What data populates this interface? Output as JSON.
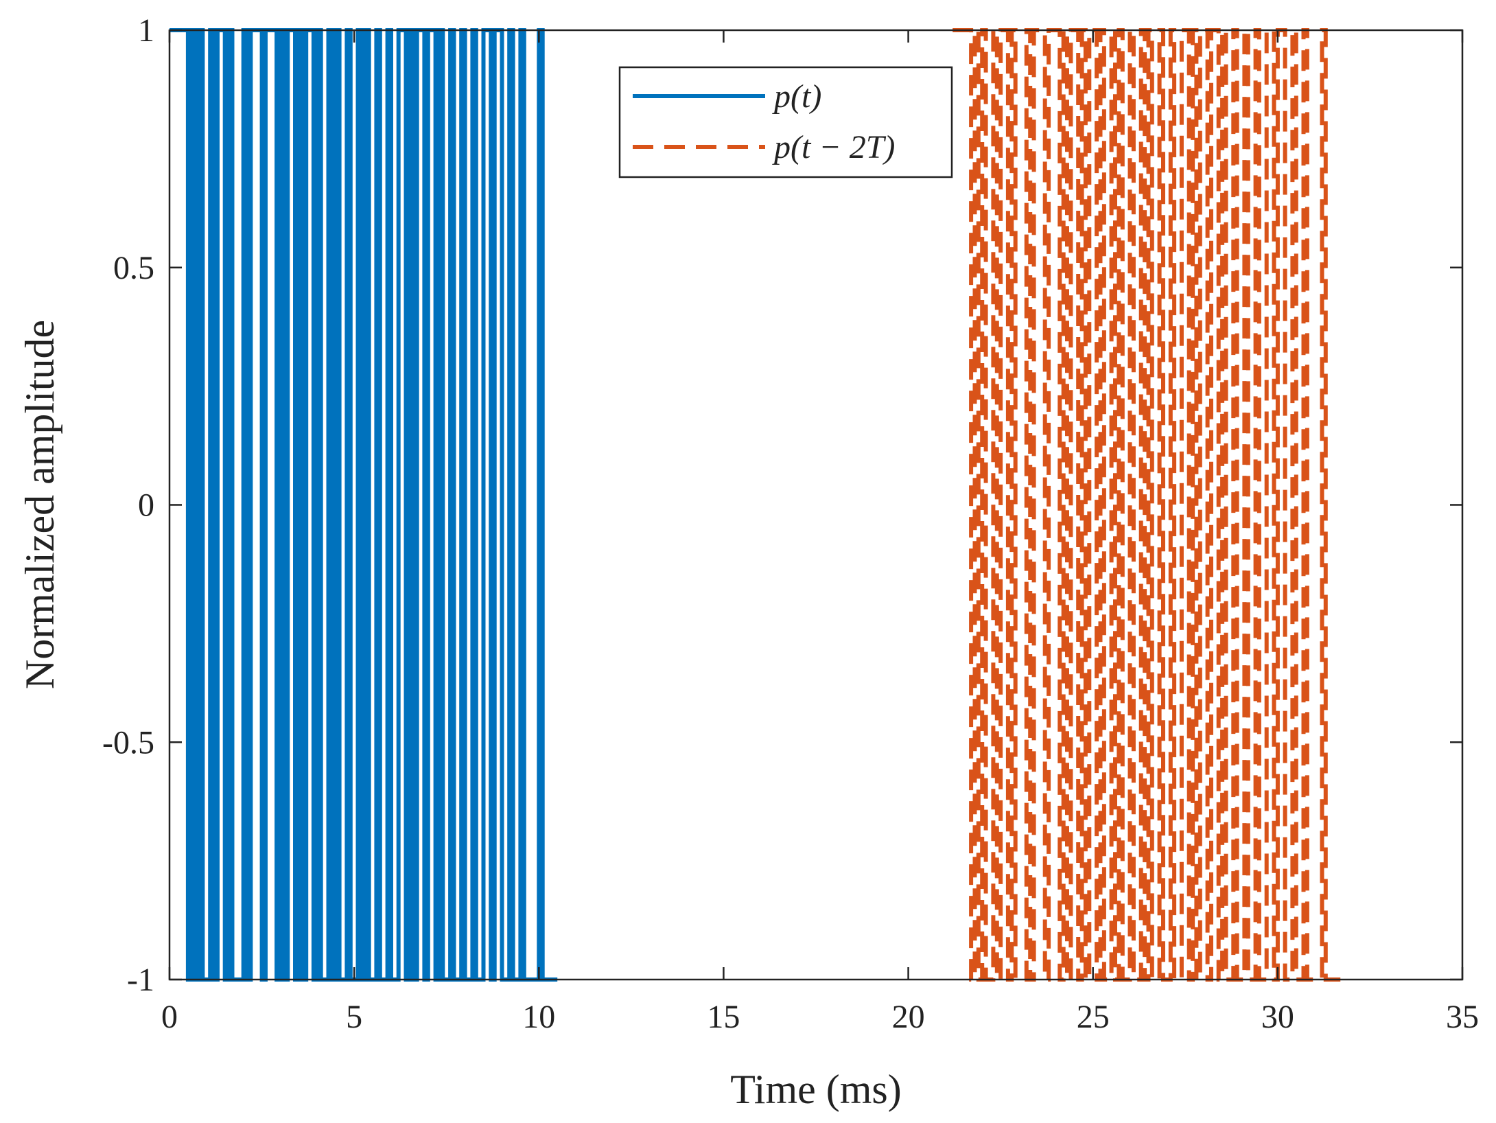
{
  "chart_data": {
    "type": "line",
    "title": "",
    "xlabel": "Time (ms)",
    "ylabel": "Normalized amplitude",
    "xlim": [
      0,
      35
    ],
    "ylim": [
      -1,
      1
    ],
    "xticks": [
      0,
      5,
      10,
      15,
      20,
      25,
      30,
      35
    ],
    "yticks": [
      1,
      0.5,
      0,
      -0.5,
      -1
    ],
    "xtick_labels": [
      "0",
      "5",
      "10",
      "15",
      "20",
      "25",
      "30",
      "35"
    ],
    "ytick_labels": [
      "1",
      "0.5",
      "0",
      "-0.5",
      "-1"
    ],
    "grid": false,
    "legend_position": "top-center",
    "series": [
      {
        "name": "p(t)",
        "color": "#0072BD",
        "style": "solid",
        "x_start": 0,
        "x_end": 10.5,
        "transitions": [
          0.5,
          0.6,
          0.7,
          0.8,
          0.9,
          1.1,
          1.2,
          1.3,
          1.5,
          1.6,
          1.7,
          2.0,
          2.1,
          2.2,
          2.5,
          2.6,
          2.9,
          3.0,
          3.1,
          3.2,
          3.4,
          3.5,
          3.6,
          3.7,
          3.9,
          4.0,
          4.1,
          4.3,
          4.4,
          4.5,
          4.6,
          4.8,
          4.9,
          5.1,
          5.2,
          5.3,
          5.4,
          5.6,
          5.7,
          5.9,
          6.0,
          6.2,
          6.4,
          6.5,
          6.6,
          6.7,
          6.9,
          7.0,
          7.2,
          7.3,
          7.4,
          7.6,
          7.7,
          7.9,
          8.0,
          8.2,
          8.3,
          8.5,
          8.7,
          8.8,
          9.0,
          9.2,
          9.3,
          9.5,
          9.6,
          10.0,
          10.1
        ],
        "initial_value": 1
      },
      {
        "name": "p(t - 2T)",
        "color": "#D95319",
        "style": "dashed",
        "x_start": 21.2,
        "x_end": 31.7,
        "transitions": [
          21.7,
          21.8,
          21.9,
          22.0,
          22.1,
          22.3,
          22.4,
          22.5,
          22.7,
          22.8,
          22.9,
          23.2,
          23.3,
          23.4,
          23.7,
          23.8,
          24.1,
          24.2,
          24.3,
          24.4,
          24.6,
          24.7,
          24.8,
          24.9,
          25.1,
          25.2,
          25.3,
          25.5,
          25.6,
          25.7,
          25.8,
          26.0,
          26.1,
          26.3,
          26.4,
          26.5,
          26.6,
          26.8,
          26.9,
          27.1,
          27.2,
          27.4,
          27.6,
          27.7,
          27.8,
          27.9,
          28.1,
          28.2,
          28.4,
          28.5,
          28.6,
          28.8,
          28.9,
          29.1,
          29.2,
          29.4,
          29.5,
          29.7,
          29.9,
          30.0,
          30.2,
          30.4,
          30.5,
          30.7,
          30.8,
          31.2,
          31.3
        ],
        "initial_value": 1
      }
    ]
  },
  "legend": {
    "entries": [
      "p(t)",
      "p(t − 2T)"
    ]
  }
}
